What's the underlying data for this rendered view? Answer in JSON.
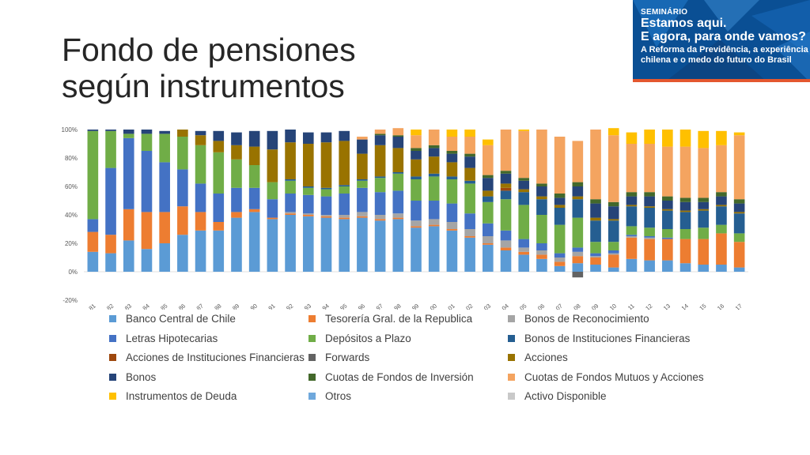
{
  "slide": {
    "title_line1": "Fondo de pensiones",
    "title_line2": "según instrumentos"
  },
  "banner": {
    "label": "SEMINÁRIO",
    "headline1": "Estamos aqui.",
    "headline2": "E agora, para onde vamos?",
    "sub1": "A Reforma da Previdência, a experiência",
    "sub2": "chilena e o medo do futuro do Brasil"
  },
  "chart_data": {
    "type": "bar",
    "stacked": "percent",
    "ylim": [
      -20,
      100
    ],
    "yticks": [
      "-20%",
      "0%",
      "20%",
      "40%",
      "60%",
      "80%",
      "100%"
    ],
    "grid": false,
    "legend_position": "bottom",
    "categories": [
      "ene.81",
      "ene.82",
      "ene.83",
      "ene.84",
      "ene.85",
      "ene.86",
      "ene.87",
      "ene.88",
      "ene.89",
      "ene.90",
      "ene.91",
      "ene.92",
      "ene.93",
      "ene.94",
      "ene.95",
      "ene.96",
      "ene.97",
      "ene.98",
      "ene.99",
      "ene.00",
      "ene.01",
      "ene.02",
      "ene.03",
      "ene.04",
      "ene.05",
      "ene.06",
      "ene.07",
      "ene.08",
      "ene.09",
      "ene.10",
      "ene.11",
      "ene.12",
      "ene.13",
      "ene.14",
      "ene.15",
      "ene.16",
      "ene.17"
    ],
    "series": [
      {
        "name": "Banco Central de Chile",
        "color": "#5b9bd5",
        "values": [
          14,
          13,
          22,
          16,
          20,
          26,
          29,
          29,
          38,
          42,
          37,
          40,
          39,
          38,
          37,
          38,
          36,
          37,
          31,
          32,
          29,
          24,
          19,
          15,
          12,
          9,
          4,
          6,
          5,
          3,
          9,
          8,
          8,
          6,
          5,
          5,
          3
        ]
      },
      {
        "name": "Tesorería Gral. de la Republica",
        "color": "#ed7d31",
        "values": [
          14,
          13,
          22,
          26,
          22,
          20,
          13,
          6,
          4,
          2,
          1,
          1,
          1,
          1,
          1,
          1,
          1,
          1,
          1,
          1,
          1,
          1,
          1,
          2,
          2,
          3,
          3,
          5,
          5,
          9,
          15,
          15,
          15,
          17,
          18,
          22,
          18
        ]
      },
      {
        "name": "Bonos de Reconocimiento",
        "color": "#a5a5a5",
        "values": [
          0,
          0,
          0,
          0,
          0,
          0,
          0,
          0,
          0,
          0,
          0,
          1,
          1,
          1,
          2,
          3,
          3,
          3,
          4,
          4,
          5,
          5,
          5,
          5,
          3,
          3,
          3,
          3,
          1,
          1,
          1,
          1,
          0,
          0,
          0,
          0,
          0
        ]
      },
      {
        "name": "Letras Hipotecarias",
        "color": "#4472c4",
        "values": [
          9,
          47,
          50,
          43,
          35,
          26,
          20,
          20,
          17,
          15,
          13,
          13,
          13,
          13,
          15,
          17,
          16,
          16,
          14,
          13,
          13,
          11,
          9,
          7,
          6,
          5,
          3,
          3,
          2,
          2,
          1,
          1,
          1,
          0,
          0,
          0,
          0
        ]
      },
      {
        "name": "Depósitos a Plazo",
        "color": "#70ad47",
        "values": [
          62,
          26,
          3,
          12,
          20,
          23,
          27,
          29,
          20,
          16,
          12,
          9,
          5,
          5,
          5,
          5,
          10,
          12,
          15,
          17,
          17,
          21,
          15,
          22,
          24,
          20,
          20,
          21,
          8,
          6,
          6,
          6,
          6,
          7,
          8,
          6,
          6
        ]
      },
      {
        "name": "Bonos de Instituciones Financieras",
        "color": "#255e91",
        "values": [
          0,
          0,
          0,
          0,
          0,
          0,
          0,
          0,
          0,
          0,
          0,
          1,
          1,
          1,
          1,
          1,
          1,
          1,
          2,
          2,
          2,
          2,
          4,
          6,
          9,
          11,
          12,
          13,
          15,
          15,
          14,
          14,
          13,
          12,
          12,
          13,
          14
        ]
      },
      {
        "name": "Acciones de Instituciones Financieras",
        "color": "#9e480e",
        "values": [
          0,
          0,
          0,
          0,
          0,
          0,
          0,
          0,
          0,
          0,
          0,
          0,
          0,
          0,
          0,
          0,
          0,
          0,
          0,
          0,
          0,
          0,
          0,
          2,
          0,
          0,
          0,
          0,
          0,
          0,
          0,
          0,
          0,
          0,
          0,
          0,
          0
        ]
      },
      {
        "name": "Forwards",
        "color": "#636363",
        "values": [
          0,
          0,
          0,
          0,
          0,
          0,
          0,
          0,
          0,
          0,
          0,
          0,
          0,
          0,
          0,
          0,
          0,
          0,
          0,
          0,
          0,
          0,
          0,
          0,
          0,
          0,
          0,
          -4,
          0,
          0,
          0,
          0,
          0,
          0,
          0,
          0,
          0
        ]
      },
      {
        "name": "Acciones",
        "color": "#997300",
        "values": [
          0,
          0,
          0,
          0,
          0,
          5,
          7,
          8,
          10,
          13,
          23,
          26,
          30,
          32,
          31,
          18,
          22,
          17,
          12,
          12,
          10,
          9,
          4,
          3,
          2,
          2,
          2,
          2,
          2,
          1,
          1,
          1,
          1,
          1,
          1,
          1,
          1
        ]
      },
      {
        "name": "Bonos",
        "color": "#264478",
        "values": [
          1,
          1,
          3,
          3,
          2,
          0,
          3,
          7,
          9,
          11,
          13,
          9,
          8,
          7,
          7,
          10,
          7,
          8,
          6,
          6,
          6,
          8,
          9,
          7,
          6,
          7,
          5,
          7,
          10,
          9,
          6,
          7,
          6,
          6,
          5,
          6,
          6
        ]
      },
      {
        "name": "Cuotas de Fondos de Inversión",
        "color": "#43682b",
        "values": [
          0,
          0,
          0,
          0,
          0,
          0,
          0,
          0,
          0,
          0,
          0,
          0,
          0,
          0,
          0,
          0,
          1,
          1,
          2,
          2,
          2,
          2,
          2,
          2,
          2,
          2,
          3,
          3,
          3,
          3,
          3,
          3,
          3,
          3,
          3,
          3,
          3
        ]
      },
      {
        "name": "Cuotas de Fondos Mutuos y Acciones",
        "color": "#f4a460",
        "values": [
          0,
          0,
          0,
          0,
          0,
          0,
          0,
          0,
          0,
          0,
          0,
          0,
          0,
          0,
          0,
          2,
          3,
          5,
          9,
          11,
          10,
          12,
          21,
          29,
          33,
          38,
          40,
          29,
          49,
          47,
          34,
          34,
          35,
          36,
          35,
          33,
          45
        ]
      },
      {
        "name": "Instrumentos de Deuda",
        "color": "#ffc000",
        "values": [
          0,
          0,
          0,
          0,
          0,
          0,
          0,
          0,
          0,
          0,
          0,
          0,
          0,
          0,
          0,
          0,
          0,
          0,
          4,
          0,
          5,
          5,
          4,
          0,
          1,
          0,
          0,
          0,
          0,
          5,
          8,
          10,
          12,
          12,
          12,
          10,
          2
        ]
      },
      {
        "name": "Otros",
        "color": "#6fa8dc",
        "values": [
          0,
          0,
          0,
          0,
          0,
          0,
          0,
          0,
          0,
          0,
          0,
          0,
          0,
          0,
          0,
          0,
          0,
          0,
          0,
          0,
          0,
          0,
          0,
          0,
          0,
          0,
          0,
          0,
          0,
          0,
          0,
          0,
          0,
          0,
          0,
          0,
          0
        ]
      },
      {
        "name": "Activo Disponible",
        "color": "#c9c9c9",
        "values": [
          0,
          0,
          0,
          0,
          0,
          0,
          0,
          0,
          0,
          0,
          0,
          0,
          0,
          0,
          0,
          0,
          0,
          0,
          0,
          0,
          0,
          0,
          0,
          0,
          0,
          0,
          0,
          0,
          0,
          0,
          0,
          0,
          0,
          0,
          0,
          0,
          0
        ]
      }
    ]
  }
}
